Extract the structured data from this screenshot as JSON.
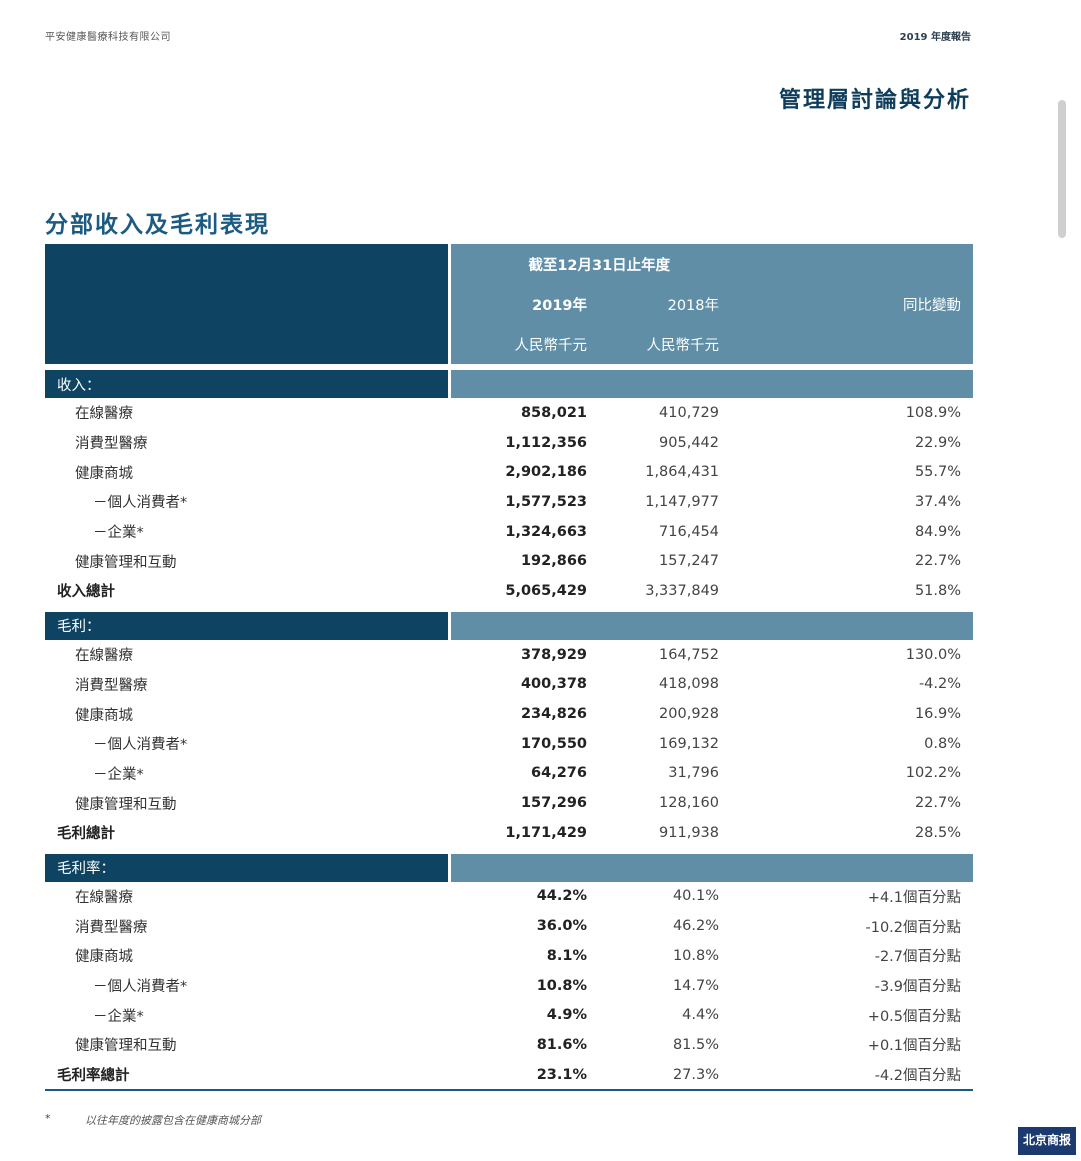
{
  "header": {
    "company": "平安健康醫療科技有限公司",
    "report": "2019 年度報告",
    "section": "管理層討論與分析"
  },
  "title": "分部收入及毛利表現",
  "table": {
    "period": "截至12月31日止年度",
    "col_2019": "2019年",
    "col_2018": "2018年",
    "col_yoy": "同比變動",
    "currency_2019": "人民幣千元",
    "currency_2018": "人民幣千元",
    "sections": [
      {
        "label": "收入：",
        "rows": [
          {
            "label": "在線醫療",
            "v2019": "858,021",
            "v2018": "410,729",
            "yoy": "108.9%"
          },
          {
            "label": "消費型醫療",
            "v2019": "1,112,356",
            "v2018": "905,442",
            "yoy": "22.9%"
          },
          {
            "label": "健康商城",
            "v2019": "2,902,186",
            "v2018": "1,864,431",
            "yoy": "55.7%"
          },
          {
            "label": "－個人消費者*",
            "v2019": "1,577,523",
            "v2018": "1,147,977",
            "yoy": "37.4%"
          },
          {
            "label": "－企業*",
            "v2019": "1,324,663",
            "v2018": "716,454",
            "yoy": "84.9%"
          },
          {
            "label": "健康管理和互動",
            "v2019": "192,866",
            "v2018": "157,247",
            "yoy": "22.7%"
          },
          {
            "label": "收入總計",
            "v2019": "5,065,429",
            "v2018": "3,337,849",
            "yoy": "51.8%"
          }
        ]
      },
      {
        "label": "毛利：",
        "rows": [
          {
            "label": "在線醫療",
            "v2019": "378,929",
            "v2018": "164,752",
            "yoy": "130.0%"
          },
          {
            "label": "消費型醫療",
            "v2019": "400,378",
            "v2018": "418,098",
            "yoy": "-4.2%"
          },
          {
            "label": "健康商城",
            "v2019": "234,826",
            "v2018": "200,928",
            "yoy": "16.9%"
          },
          {
            "label": "－個人消費者*",
            "v2019": "170,550",
            "v2018": "169,132",
            "yoy": "0.8%"
          },
          {
            "label": "－企業*",
            "v2019": "64,276",
            "v2018": "31,796",
            "yoy": "102.2%"
          },
          {
            "label": "健康管理和互動",
            "v2019": "157,296",
            "v2018": "128,160",
            "yoy": "22.7%"
          },
          {
            "label": "毛利總計",
            "v2019": "1,171,429",
            "v2018": "911,938",
            "yoy": "28.5%"
          }
        ]
      },
      {
        "label": "毛利率：",
        "rows": [
          {
            "label": "在線醫療",
            "v2019": "44.2%",
            "v2018": "40.1%",
            "yoy": "+4.1個百分點"
          },
          {
            "label": "消費型醫療",
            "v2019": "36.0%",
            "v2018": "46.2%",
            "yoy": "-10.2個百分點"
          },
          {
            "label": "健康商城",
            "v2019": "8.1%",
            "v2018": "10.8%",
            "yoy": "-2.7個百分點"
          },
          {
            "label": "－個人消費者*",
            "v2019": "10.8%",
            "v2018": "14.7%",
            "yoy": "-3.9個百分點"
          },
          {
            "label": "－企業*",
            "v2019": "4.9%",
            "v2018": "4.4%",
            "yoy": "+0.5個百分點"
          },
          {
            "label": "健康管理和互動",
            "v2019": "81.6%",
            "v2018": "81.5%",
            "yoy": "+0.1個百分點"
          },
          {
            "label": "毛利率總計",
            "v2019": "23.1%",
            "v2018": "27.3%",
            "yoy": "-4.2個百分點"
          }
        ]
      }
    ]
  },
  "footnote": {
    "mark": "*",
    "text": "以往年度的披露包含在健康商城分部"
  },
  "watermark": "北京商报"
}
